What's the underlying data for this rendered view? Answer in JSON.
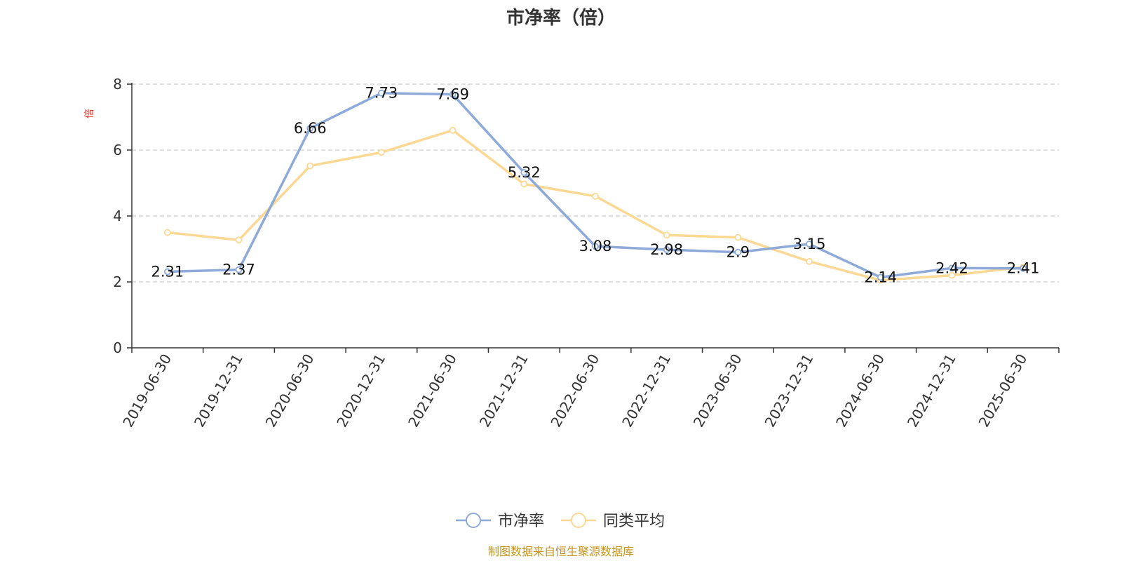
{
  "chart_data": {
    "type": "line",
    "title": "市净率（倍）",
    "ylabel": "倍",
    "xlabel": "",
    "ylim": [
      0,
      8
    ],
    "yticks": [
      0,
      2,
      4,
      6,
      8
    ],
    "grid": true,
    "legend_position": "bottom-center",
    "categories": [
      "2019-06-30",
      "2019-12-31",
      "2020-06-30",
      "2020-12-31",
      "2021-06-30",
      "2021-12-31",
      "2022-06-30",
      "2022-12-31",
      "2023-06-30",
      "2023-12-31",
      "2024-06-30",
      "2024-12-31",
      "2025-06-30"
    ],
    "series": [
      {
        "name": "市净率",
        "color": "#8eaad8",
        "show_labels": true,
        "values": [
          2.31,
          2.37,
          6.66,
          7.73,
          7.69,
          5.32,
          3.08,
          2.98,
          2.9,
          3.15,
          2.14,
          2.42,
          2.41
        ]
      },
      {
        "name": "同类平均",
        "color": "#fbd894",
        "show_labels": false,
        "values": [
          3.5,
          3.27,
          5.52,
          5.93,
          6.6,
          4.97,
          4.6,
          3.42,
          3.35,
          2.62,
          2.05,
          2.2,
          2.45
        ]
      }
    ],
    "source": "制图数据来自恒生聚源数据库"
  }
}
